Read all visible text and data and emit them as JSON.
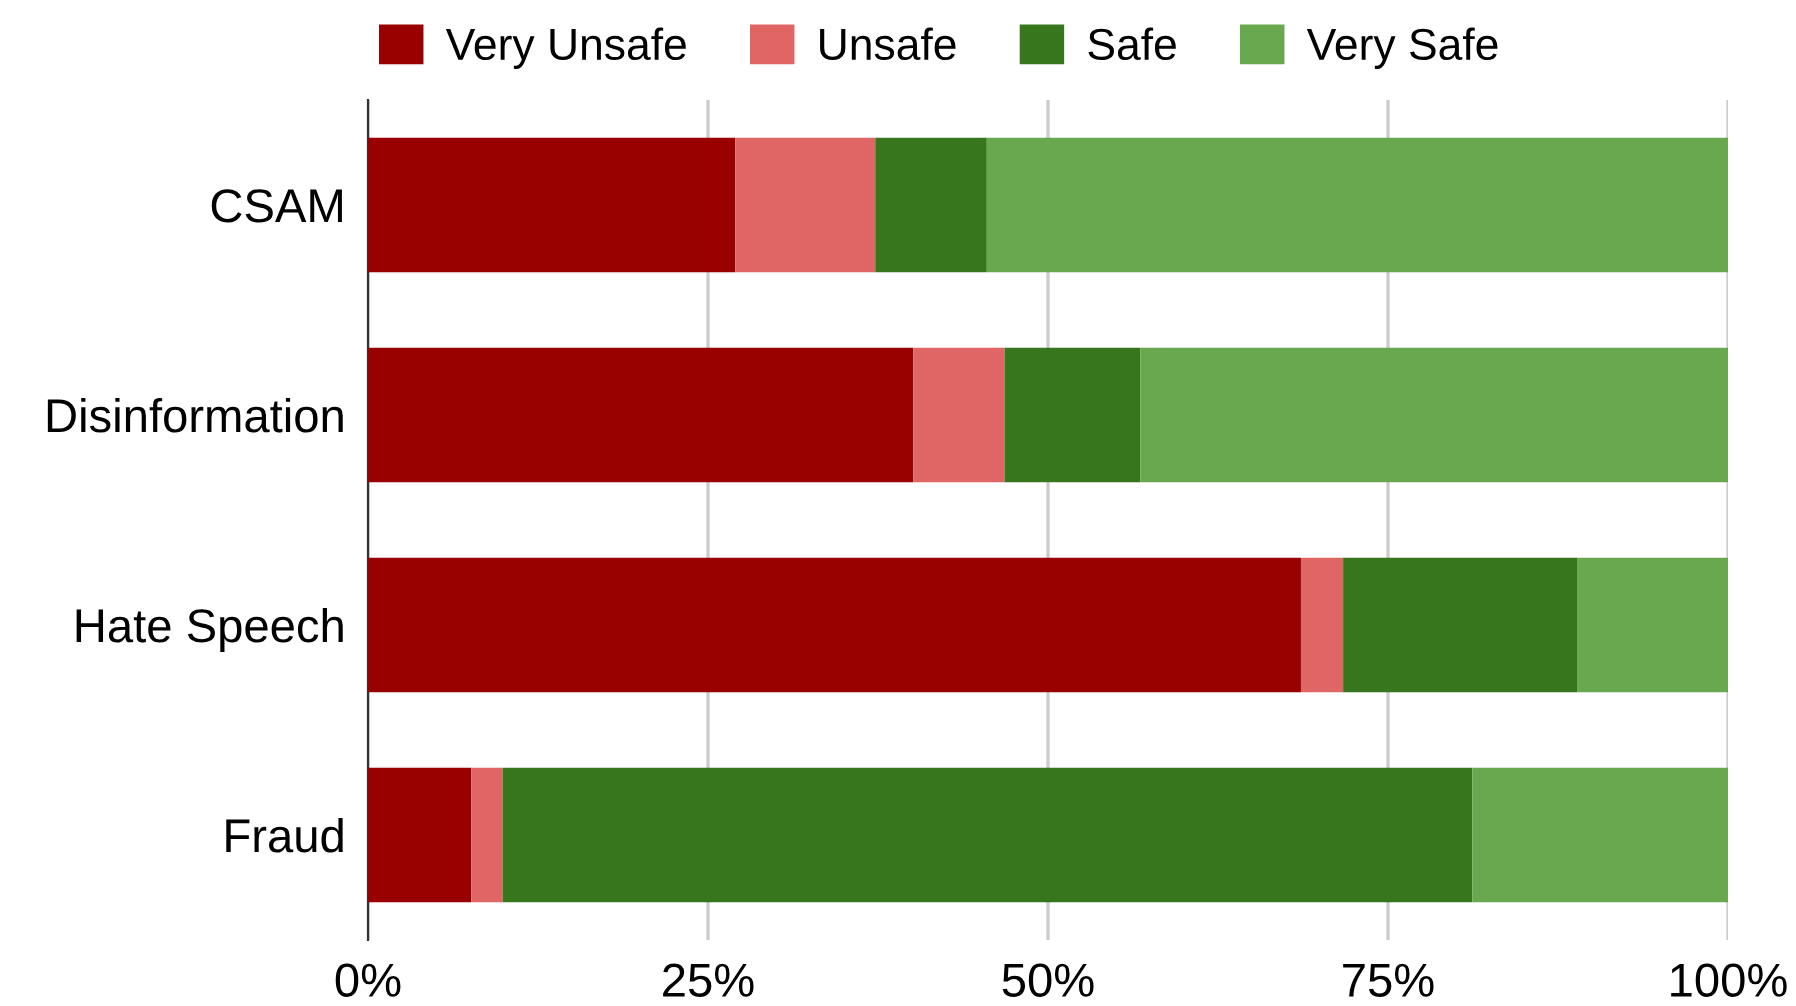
{
  "chart_data": {
    "type": "bar",
    "orientation": "horizontal",
    "stacked": true,
    "categories": [
      "CSAM",
      "Disinformation",
      "Hate Speech",
      "Fraud"
    ],
    "series": [
      {
        "name": "Very Unsafe",
        "color": "#990000",
        "values": [
          27.0,
          40.1,
          68.6,
          7.6
        ]
      },
      {
        "name": "Unsafe",
        "color": "#e06666",
        "values": [
          10.3,
          6.7,
          3.1,
          2.3
        ]
      },
      {
        "name": "Safe",
        "color": "#38761d",
        "values": [
          8.2,
          10.0,
          17.2,
          71.3
        ]
      },
      {
        "name": "Very Safe",
        "color": "#6aa84f",
        "values": [
          54.5,
          43.2,
          11.1,
          18.8
        ]
      }
    ],
    "xlim": [
      0,
      100
    ],
    "xticks": [
      {
        "value": 0,
        "label": "0%"
      },
      {
        "value": 25,
        "label": "25%"
      },
      {
        "value": 50,
        "label": "50%"
      },
      {
        "value": 75,
        "label": "75%"
      },
      {
        "value": 100,
        "label": "100%"
      }
    ],
    "grid": "x",
    "legend": "top"
  }
}
